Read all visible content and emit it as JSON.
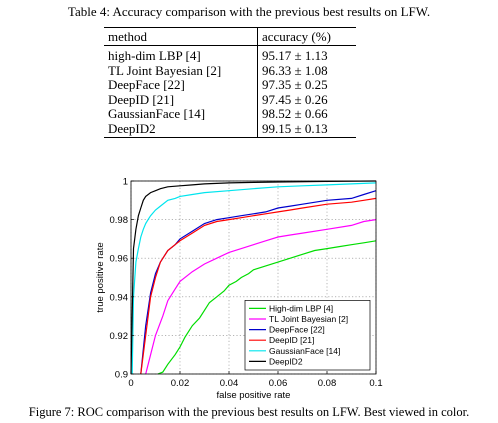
{
  "table": {
    "caption": "Table 4: Accuracy comparison with the previous best results on LFW.",
    "headers": [
      "method",
      "accuracy (%)"
    ],
    "rows": [
      {
        "method": "high-dim LBP [4]",
        "accuracy": "95.17 ± 1.13"
      },
      {
        "method": "TL Joint Bayesian [2]",
        "accuracy": "96.33 ± 1.08"
      },
      {
        "method": "DeepFace [22]",
        "accuracy": "97.35 ± 0.25"
      },
      {
        "method": "DeepID [21]",
        "accuracy": "97.45 ± 0.26"
      },
      {
        "method": "GaussianFace [14]",
        "accuracy": "98.52 ± 0.66"
      },
      {
        "method": "DeepID2",
        "accuracy": "99.15 ± 0.13"
      }
    ]
  },
  "figure": {
    "caption": "Figure 7: ROC comparison with the previous best results on LFW. Best viewed in color."
  },
  "chart_data": {
    "type": "line",
    "xlabel": "false positive rate",
    "ylabel": "true positive rate",
    "xlim": [
      0,
      0.1
    ],
    "ylim": [
      0.9,
      1
    ],
    "xticks": [
      0,
      0.02,
      0.04,
      0.06,
      0.08,
      0.1
    ],
    "xtick_labels": [
      "0",
      "0.02",
      "0.04",
      "0.06",
      "0.08",
      "0.1"
    ],
    "yticks": [
      0.9,
      0.92,
      0.94,
      0.96,
      0.98,
      1
    ],
    "ytick_labels": [
      "0.9",
      "0.92",
      "0.94",
      "0.96",
      "0.98",
      "1"
    ],
    "grid": true,
    "legend_position": "bottom-right",
    "series": [
      {
        "name": "High-dim LBP [4]",
        "color": "#00dd00",
        "x": [
          0.011,
          0.013,
          0.015,
          0.018,
          0.02,
          0.022,
          0.025,
          0.028,
          0.03,
          0.032,
          0.035,
          0.038,
          0.04,
          0.043,
          0.045,
          0.048,
          0.05,
          0.055,
          0.06,
          0.065,
          0.07,
          0.075,
          0.08,
          0.085,
          0.09,
          0.095,
          0.1
        ],
        "y": [
          0.9,
          0.901,
          0.905,
          0.91,
          0.914,
          0.919,
          0.925,
          0.929,
          0.933,
          0.937,
          0.94,
          0.943,
          0.946,
          0.948,
          0.95,
          0.952,
          0.954,
          0.956,
          0.958,
          0.96,
          0.962,
          0.964,
          0.965,
          0.966,
          0.967,
          0.968,
          0.969
        ]
      },
      {
        "name": "TL Joint Bayesian  [2]",
        "color": "#ff00ff",
        "x": [
          0.006,
          0.008,
          0.01,
          0.013,
          0.015,
          0.018,
          0.02,
          0.025,
          0.03,
          0.035,
          0.04,
          0.045,
          0.05,
          0.055,
          0.06,
          0.065,
          0.07,
          0.08,
          0.09,
          0.095,
          0.1
        ],
        "y": [
          0.9,
          0.91,
          0.92,
          0.93,
          0.938,
          0.944,
          0.948,
          0.953,
          0.957,
          0.96,
          0.963,
          0.965,
          0.967,
          0.969,
          0.971,
          0.972,
          0.973,
          0.975,
          0.977,
          0.979,
          0.98
        ]
      },
      {
        "name": "DeepFace [22]",
        "color": "#0000cc",
        "x": [
          0.004,
          0.006,
          0.008,
          0.01,
          0.012,
          0.015,
          0.018,
          0.02,
          0.025,
          0.03,
          0.035,
          0.04,
          0.045,
          0.05,
          0.055,
          0.06,
          0.065,
          0.07,
          0.08,
          0.09,
          0.095,
          0.1
        ],
        "y": [
          0.9,
          0.925,
          0.942,
          0.952,
          0.958,
          0.964,
          0.967,
          0.97,
          0.974,
          0.978,
          0.98,
          0.981,
          0.982,
          0.983,
          0.984,
          0.986,
          0.987,
          0.988,
          0.99,
          0.991,
          0.993,
          0.995
        ]
      },
      {
        "name": "DeepID [21]",
        "color": "#ff0000",
        "x": [
          0.004,
          0.006,
          0.008,
          0.01,
          0.012,
          0.015,
          0.018,
          0.02,
          0.025,
          0.03,
          0.035,
          0.04,
          0.045,
          0.05,
          0.055,
          0.06,
          0.065,
          0.07,
          0.08,
          0.09,
          0.095,
          0.1
        ],
        "y": [
          0.9,
          0.92,
          0.94,
          0.95,
          0.958,
          0.964,
          0.967,
          0.969,
          0.973,
          0.977,
          0.979,
          0.98,
          0.981,
          0.982,
          0.983,
          0.984,
          0.985,
          0.986,
          0.988,
          0.989,
          0.99,
          0.991
        ]
      },
      {
        "name": "GaussianFace [14]",
        "color": "#00e5ee",
        "x": [
          0.0005,
          0.001,
          0.002,
          0.003,
          0.004,
          0.005,
          0.006,
          0.007,
          0.008,
          0.01,
          0.012,
          0.015,
          0.018,
          0.02,
          0.025,
          0.03,
          0.04,
          0.05,
          0.06,
          0.07,
          0.08,
          0.09,
          0.1
        ],
        "y": [
          0.9,
          0.94,
          0.958,
          0.965,
          0.971,
          0.975,
          0.978,
          0.98,
          0.982,
          0.985,
          0.987,
          0.99,
          0.991,
          0.992,
          0.993,
          0.994,
          0.995,
          0.996,
          0.997,
          0.9975,
          0.998,
          0.9985,
          0.999
        ]
      },
      {
        "name": "DeepID2",
        "color": "#000000",
        "x": [
          0.0,
          0.001,
          0.002,
          0.003,
          0.004,
          0.005,
          0.006,
          0.008,
          0.01,
          0.012,
          0.015,
          0.02,
          0.025,
          0.03,
          0.04,
          0.05,
          0.06,
          0.08,
          0.1
        ],
        "y": [
          0.9,
          0.965,
          0.975,
          0.982,
          0.986,
          0.99,
          0.992,
          0.994,
          0.995,
          0.996,
          0.997,
          0.9975,
          0.998,
          0.9985,
          0.999,
          0.9993,
          0.9995,
          0.9998,
          1.0
        ]
      }
    ]
  }
}
